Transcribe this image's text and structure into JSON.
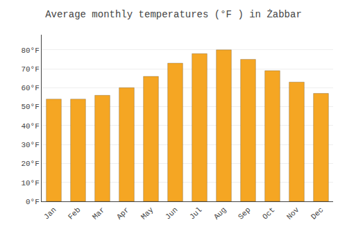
{
  "chart_data": {
    "type": "bar",
    "title": "Average monthly temperatures (°F ) in Żabbar",
    "categories": [
      "Jan",
      "Feb",
      "Mar",
      "Apr",
      "May",
      "Jun",
      "Jul",
      "Aug",
      "Sep",
      "Oct",
      "Nov",
      "Dec"
    ],
    "values": [
      54,
      54,
      56,
      60,
      66,
      73,
      78,
      80,
      75,
      69,
      63,
      57
    ],
    "color": "#F5A623",
    "ylim": [
      0,
      88
    ],
    "yticks": [
      {
        "value": 0,
        "label": "0°F"
      },
      {
        "value": 10,
        "label": "10°F"
      },
      {
        "value": 20,
        "label": "20°F"
      },
      {
        "value": 30,
        "label": "30°F"
      },
      {
        "value": 40,
        "label": "40°F"
      },
      {
        "value": 50,
        "label": "50°F"
      },
      {
        "value": 60,
        "label": "60°F"
      },
      {
        "value": 70,
        "label": "70°F"
      },
      {
        "value": 80,
        "label": "80°F"
      }
    ],
    "grid": true
  }
}
